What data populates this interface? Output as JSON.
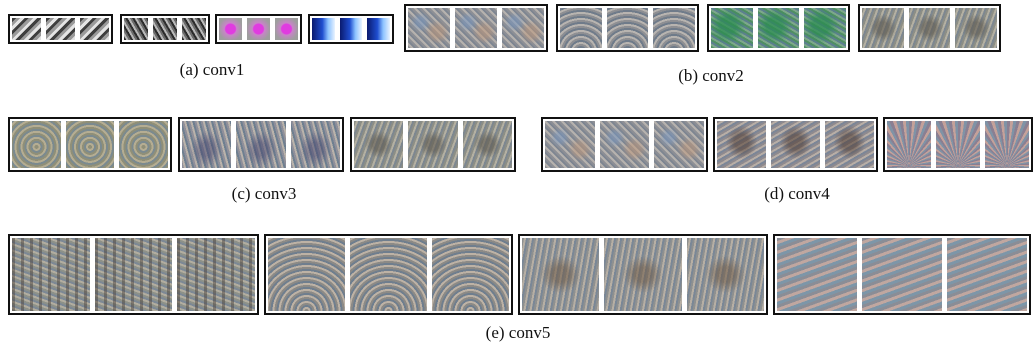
{
  "figure": {
    "captions": {
      "conv1": "(a) conv1",
      "conv2": "(b) conv2",
      "conv3": "(c) conv3",
      "conv4": "(d) conv4",
      "conv5": "(e) conv5"
    }
  }
}
